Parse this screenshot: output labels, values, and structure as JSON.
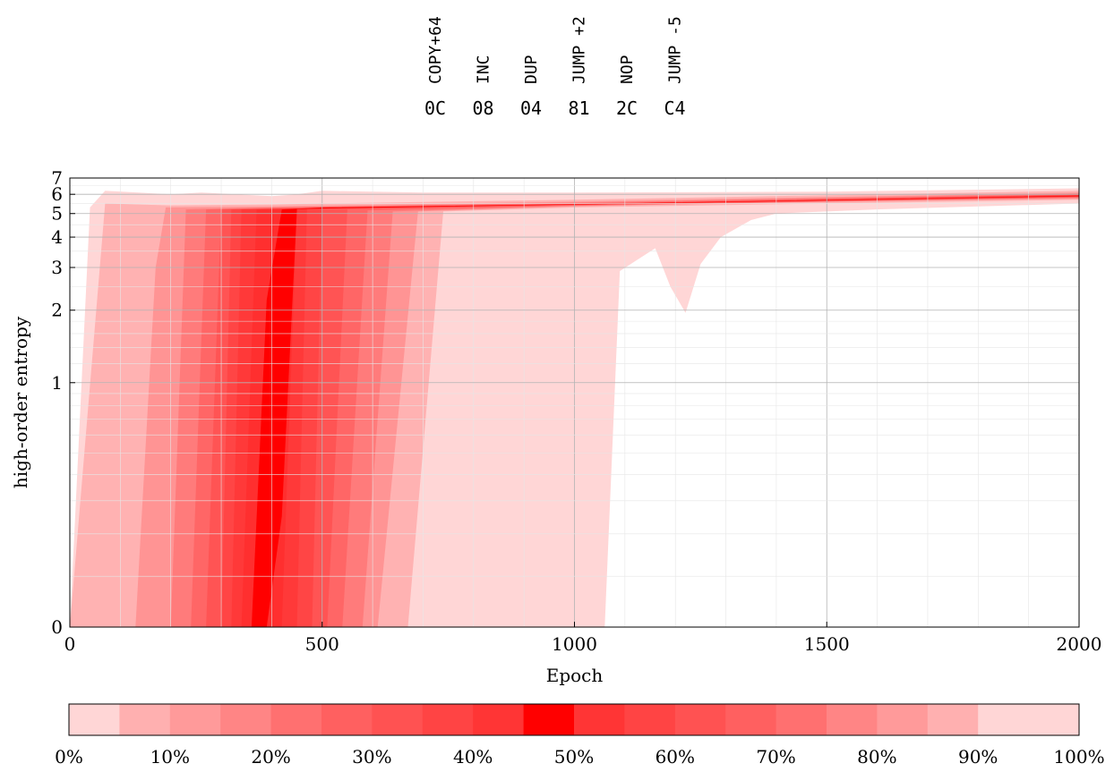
{
  "chart_data": {
    "type": "area",
    "description_of_encoding": "percentile fan chart of high-order entropy over epochs",
    "xlabel": "Epoch",
    "ylabel": "high-order entropy",
    "xlim": [
      0,
      2000
    ],
    "ylim": [
      0,
      7
    ],
    "y_scale": "asinh-like (log above ~1, linear near 0)",
    "x_ticks": [
      0,
      500,
      1000,
      1500,
      2000
    ],
    "x_tick_labels": [
      "0",
      "500",
      "1000",
      "1500",
      "2000"
    ],
    "y_ticks": [
      0,
      1,
      2,
      3,
      4,
      5,
      6,
      7
    ],
    "y_tick_labels": [
      "0",
      "1",
      "2",
      "3",
      "4",
      "5",
      "6",
      "7"
    ],
    "grid": true,
    "color": "#ff0000",
    "bands": [
      {
        "lower_pct": 0,
        "upper_pct": 100,
        "lower": [
          [
            0,
            0
          ],
          [
            1060,
            0
          ],
          [
            1090,
            2.9
          ],
          [
            1160,
            3.6
          ],
          [
            1190,
            2.5
          ],
          [
            1220,
            1.95
          ],
          [
            1250,
            3.1
          ],
          [
            1290,
            4.0
          ],
          [
            1350,
            4.7
          ],
          [
            1400,
            5.0
          ],
          [
            1600,
            5.2
          ],
          [
            2000,
            5.5
          ]
        ],
        "upper": [
          [
            0,
            0
          ],
          [
            40,
            5.3
          ],
          [
            70,
            6.2
          ],
          [
            200,
            6.0
          ],
          [
            260,
            6.1
          ],
          [
            400,
            5.9
          ],
          [
            450,
            6.0
          ],
          [
            500,
            6.2
          ],
          [
            700,
            6.1
          ],
          [
            1000,
            6.1
          ],
          [
            1500,
            6.15
          ],
          [
            2000,
            6.35
          ]
        ]
      },
      {
        "lower_pct": 5,
        "upper_pct": 95,
        "lower": [
          [
            0,
            0
          ],
          [
            670,
            0
          ],
          [
            740,
            5.1
          ],
          [
            1000,
            5.3
          ],
          [
            1500,
            5.5
          ],
          [
            2000,
            5.7
          ]
        ],
        "upper": [
          [
            0,
            0
          ],
          [
            70,
            5.5
          ],
          [
            200,
            5.4
          ],
          [
            400,
            5.45
          ],
          [
            500,
            5.5
          ],
          [
            1000,
            5.7
          ],
          [
            1500,
            5.95
          ],
          [
            2000,
            6.2
          ]
        ]
      },
      {
        "lower_pct": 10,
        "upper_pct": 90,
        "lower": [
          [
            0,
            0
          ],
          [
            610,
            0
          ],
          [
            690,
            5.1
          ],
          [
            1000,
            5.35
          ],
          [
            1500,
            5.6
          ],
          [
            2000,
            5.75
          ]
        ],
        "upper": [
          [
            0,
            0
          ],
          [
            130,
            0
          ],
          [
            170,
            3.0
          ],
          [
            190,
            5.3
          ],
          [
            400,
            5.35
          ],
          [
            1000,
            5.6
          ],
          [
            2000,
            6.1
          ]
        ]
      },
      {
        "lower_pct": 15,
        "upper_pct": 85,
        "lower": [
          [
            0,
            0
          ],
          [
            580,
            0
          ],
          [
            640,
            5.1
          ],
          [
            1000,
            5.38
          ],
          [
            2000,
            5.8
          ]
        ],
        "upper": [
          [
            0,
            0
          ],
          [
            200,
            0
          ],
          [
            230,
            5.2
          ],
          [
            400,
            5.3
          ],
          [
            1000,
            5.55
          ],
          [
            2000,
            6.05
          ]
        ]
      },
      {
        "lower_pct": 20,
        "upper_pct": 80,
        "lower": [
          [
            0,
            0
          ],
          [
            540,
            0
          ],
          [
            590,
            5.15
          ],
          [
            1000,
            5.4
          ],
          [
            2000,
            5.82
          ]
        ],
        "upper": [
          [
            0,
            0
          ],
          [
            240,
            0
          ],
          [
            270,
            5.2
          ],
          [
            400,
            5.28
          ],
          [
            1000,
            5.5
          ],
          [
            2000,
            6.0
          ]
        ]
      },
      {
        "lower_pct": 25,
        "upper_pct": 75,
        "lower": [
          [
            0,
            0
          ],
          [
            510,
            0
          ],
          [
            550,
            5.2
          ],
          [
            1000,
            5.42
          ],
          [
            2000,
            5.85
          ]
        ],
        "upper": [
          [
            0,
            0
          ],
          [
            270,
            0
          ],
          [
            300,
            5.2
          ],
          [
            400,
            5.25
          ],
          [
            1000,
            5.48
          ],
          [
            2000,
            5.98
          ]
        ]
      },
      {
        "lower_pct": 30,
        "upper_pct": 70,
        "lower": [
          [
            0,
            0
          ],
          [
            480,
            0
          ],
          [
            500,
            5.25
          ],
          [
            1000,
            5.44
          ],
          [
            2000,
            5.87
          ]
        ],
        "upper": [
          [
            0,
            0
          ],
          [
            300,
            0
          ],
          [
            320,
            5.2
          ],
          [
            400,
            5.22
          ],
          [
            1000,
            5.47
          ],
          [
            2000,
            5.96
          ]
        ]
      },
      {
        "lower_pct": 35,
        "upper_pct": 65,
        "lower": [
          [
            0,
            0
          ],
          [
            450,
            0
          ],
          [
            470,
            5.25
          ],
          [
            1000,
            5.45
          ],
          [
            2000,
            5.88
          ]
        ],
        "upper": [
          [
            0,
            0
          ],
          [
            320,
            0
          ],
          [
            340,
            5.2
          ],
          [
            420,
            5.22
          ],
          [
            1000,
            5.46
          ],
          [
            2000,
            5.94
          ]
        ]
      },
      {
        "lower_pct": 40,
        "upper_pct": 60,
        "lower": [
          [
            0,
            0
          ],
          [
            420,
            0
          ],
          [
            450,
            5.25
          ],
          [
            1000,
            5.45
          ],
          [
            2000,
            5.89
          ]
        ],
        "upper": [
          [
            0,
            0
          ],
          [
            340,
            0
          ],
          [
            370,
            5.2
          ],
          [
            430,
            5.22
          ],
          [
            1000,
            5.46
          ],
          [
            2000,
            5.93
          ]
        ]
      },
      {
        "lower_pct": 45,
        "upper_pct": 55,
        "lower": [
          [
            0,
            0
          ],
          [
            390,
            0
          ],
          [
            420,
            0.25
          ],
          [
            450,
            5.22
          ],
          [
            1000,
            5.45
          ],
          [
            2000,
            5.9
          ]
        ],
        "upper": [
          [
            0,
            0
          ],
          [
            360,
            0
          ],
          [
            390,
            2.2
          ],
          [
            420,
            5.2
          ],
          [
            500,
            5.3
          ],
          [
            1000,
            5.46
          ],
          [
            2000,
            5.92
          ]
        ]
      }
    ],
    "colorbar": {
      "labels": [
        "0%",
        "10%",
        "20%",
        "30%",
        "40%",
        "50%",
        "60%",
        "70%",
        "80%",
        "90%",
        "100%"
      ],
      "cell_colors": [
        "#ffd6d6",
        "#ffb0b0",
        "#ff9a9a",
        "#ff8585",
        "#ff7070",
        "#ff6060",
        "#ff5252",
        "#ff4444",
        "#ff3535",
        "#ff0000",
        "#ff3535",
        "#ff4444",
        "#ff5252",
        "#ff6060",
        "#ff7070",
        "#ff8585",
        "#ff9a9a",
        "#ffb0b0",
        "#ffd6d6",
        "#ffd6d6"
      ]
    }
  },
  "program": {
    "opcodes": [
      {
        "mnemonic": "COPY+64",
        "hex": "0C"
      },
      {
        "mnemonic": "INC",
        "hex": "08"
      },
      {
        "mnemonic": "DUP",
        "hex": "04"
      },
      {
        "mnemonic": "JUMP +2",
        "hex": "81"
      },
      {
        "mnemonic": "NOP",
        "hex": "2C"
      },
      {
        "mnemonic": "JUMP -5",
        "hex": "C4"
      }
    ]
  }
}
